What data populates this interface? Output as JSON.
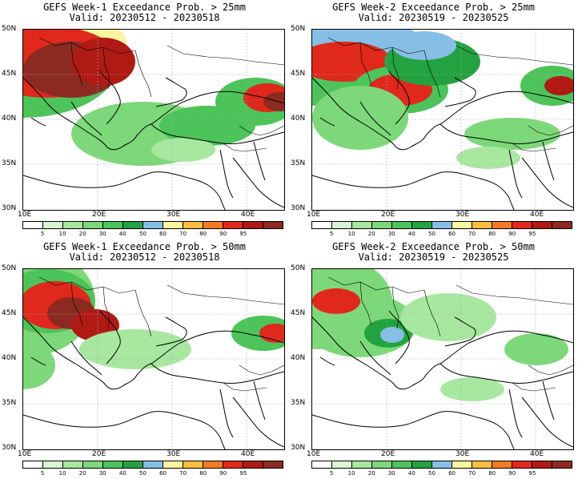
{
  "panels": [
    {
      "title": "GEFS Week-1 Exceedance Prob. > 25mm",
      "valid": "Valid: 20230512 - 20230518"
    },
    {
      "title": "GEFS Week-2 Exceedance Prob. > 25mm",
      "valid": "Valid: 20230519 - 20230525"
    },
    {
      "title": "GEFS Week-1 Exceedance Prob. > 50mm",
      "valid": "Valid: 20230512 - 20230518"
    },
    {
      "title": "GEFS Week-2 Exceedance Prob. > 50mm",
      "valid": "Valid: 20230519 - 20230525"
    }
  ],
  "lat_labels": [
    "50N",
    "45N",
    "40N",
    "35N",
    "30N"
  ],
  "lon_labels": [
    "10E",
    "20E",
    "30E",
    "40E"
  ],
  "colorbar": {
    "labels": [
      "5",
      "10",
      "20",
      "30",
      "40",
      "50",
      "60",
      "70",
      "80",
      "90",
      "95"
    ],
    "colors": [
      "#ffffff",
      "#d9f5d3",
      "#a8e7a0",
      "#7dd87a",
      "#4cc45a",
      "#23a33f",
      "#86bfe6",
      "#fff5a0",
      "#fbbf3d",
      "#f27b24",
      "#e0281c",
      "#b01a14",
      "#8c2a22"
    ]
  }
}
